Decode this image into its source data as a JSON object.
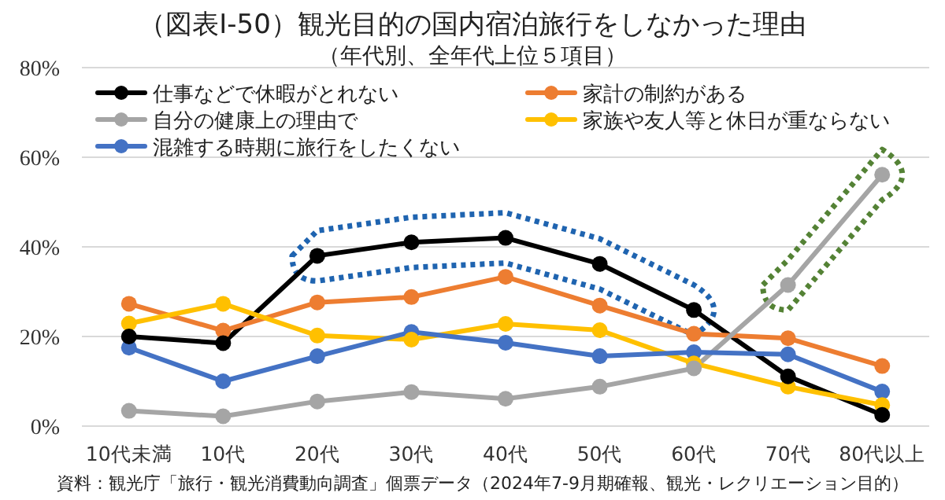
{
  "chart_data": {
    "type": "line",
    "title": "（図表Ⅰ-50）観光目的の国内宿泊旅行をしなかった理由",
    "subtitle": "（年代別、全年代上位５項目）",
    "categories": [
      "10代未満",
      "10代",
      "20代",
      "30代",
      "40代",
      "50代",
      "60代",
      "70代",
      "80代以上"
    ],
    "series": [
      {
        "name": "仕事などで休暇がとれない",
        "color": "#000000",
        "values": [
          20,
          18.5,
          38,
          41,
          42,
          36.2,
          25.9,
          11.1,
          2.5
        ]
      },
      {
        "name": "家計の制約がある",
        "color": "#ed7d31",
        "values": [
          27.3,
          21.3,
          27.6,
          28.8,
          33.3,
          26.9,
          20.6,
          19.6,
          13.4
        ]
      },
      {
        "name": "自分の健康上の理由で",
        "color": "#a5a5a5",
        "values": [
          3.4,
          2.2,
          5.5,
          7.6,
          6.1,
          8.8,
          12.9,
          31.5,
          56.1
        ]
      },
      {
        "name": "家族や友人等と休日が重ならない",
        "color": "#ffc000",
        "values": [
          22.9,
          27.3,
          20.2,
          19.3,
          22.8,
          21.4,
          14,
          8.8,
          4.7
        ]
      },
      {
        "name": "混雑する時期に旅行をしたくない",
        "color": "#4472c4",
        "values": [
          17.5,
          10,
          15.6,
          21,
          18.6,
          15.6,
          16.5,
          16,
          7.7
        ]
      }
    ],
    "ylim": [
      0,
      80
    ],
    "yticks": [
      {
        "value": 0,
        "label": "0%"
      },
      {
        "value": 20,
        "label": "20%"
      },
      {
        "value": 40,
        "label": "40%"
      },
      {
        "value": 60,
        "label": "60%"
      },
      {
        "value": 80,
        "label": "80%"
      }
    ],
    "grid": "y",
    "legend": "top",
    "marker": "circle",
    "line_style": "solid",
    "annotations": [
      "資料：観光庁「旅行・観光消費動向調査」個票データ（2024年7-9月期確報、観光・レクリエーション目的）"
    ]
  }
}
